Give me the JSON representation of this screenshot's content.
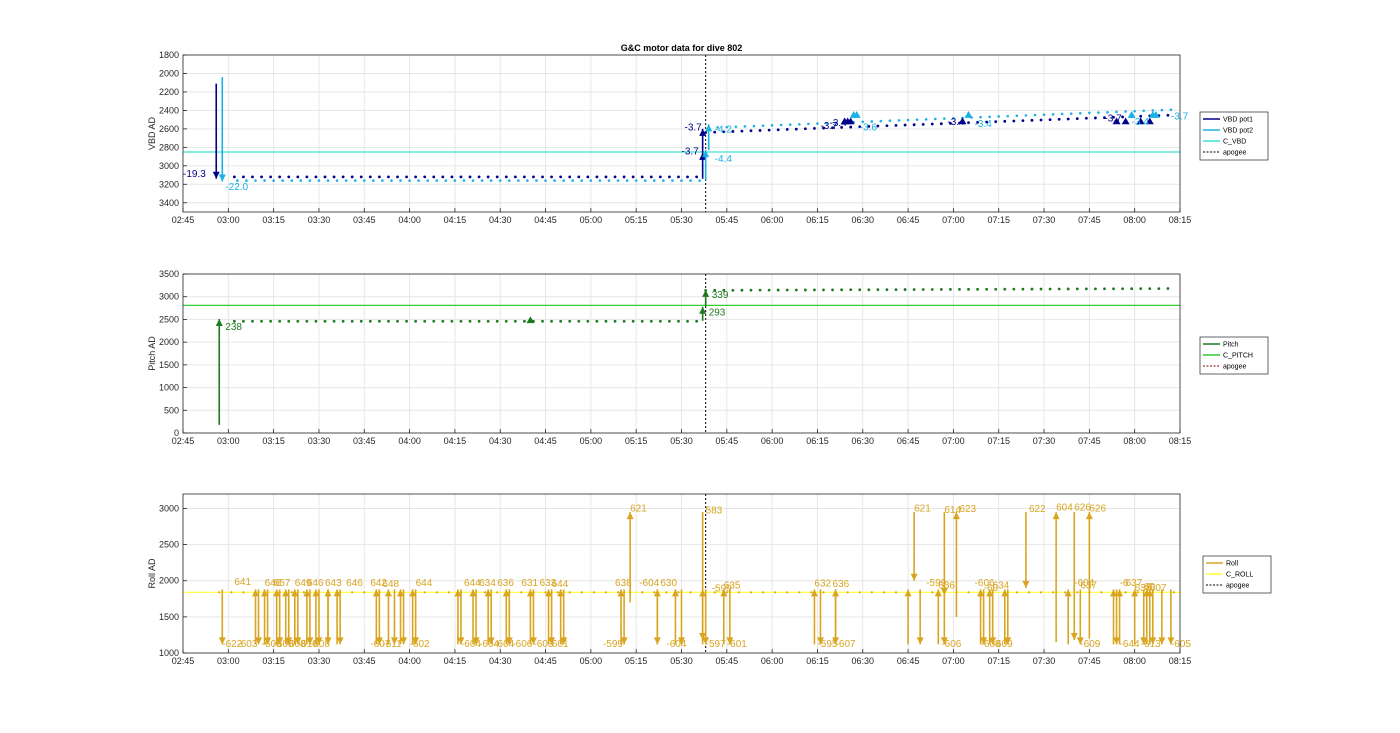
{
  "chart_data": [
    {
      "type": "line",
      "title": "G&C motor data for dive 802",
      "xlabel": "",
      "ylabel": "VBD AD",
      "ylim": [
        3500,
        1800
      ],
      "y_reversed": true,
      "yticks": [
        "1800",
        "2000",
        "2200",
        "2400",
        "2600",
        "2800",
        "3000",
        "3200",
        "3400"
      ],
      "xticks": [
        "02:45",
        "03:00",
        "03:15",
        "03:30",
        "03:45",
        "04:00",
        "04:15",
        "04:30",
        "04:45",
        "05:00",
        "05:15",
        "05:30",
        "05:45",
        "06:00",
        "06:15",
        "06:30",
        "06:45",
        "07:00",
        "07:15",
        "07:30",
        "07:45",
        "08:00",
        "08:15"
      ],
      "grid": true,
      "legend": "right",
      "legend_entries": [
        "VBD pot1",
        "VBD pot2",
        "C_VBD",
        "apogee"
      ],
      "colors": {
        "pot1": "#00008b",
        "pot2": "#1ab2e6",
        "cvbd": "#40e0d0",
        "apogee": "#000000",
        "ann_pot1": "#00008b",
        "ann_pot2": "#1ab2e6"
      },
      "series": [
        {
          "name": "C_VBD",
          "type": "constant",
          "value": 2850
        },
        {
          "name": "apogee",
          "type": "vertical",
          "x": "05:38"
        }
      ],
      "segments_pot1": [
        {
          "x": "02:56",
          "y0": 2110,
          "y1": 3140
        },
        {
          "x": "05:37",
          "y0": 3140,
          "y1": 2860
        },
        {
          "x": "05:37",
          "y0": 2860,
          "y1": 2600
        }
      ],
      "segments_pot2": [
        {
          "x": "02:58",
          "y0": 2040,
          "y1": 3170
        },
        {
          "x": "05:38",
          "y0": 3150,
          "y1": 2830
        },
        {
          "x": "05:39",
          "y0": 2830,
          "y1": 2550
        }
      ],
      "markers_pot1": [
        "06:24",
        "06:25",
        "06:26",
        "07:03",
        "07:54",
        "07:57",
        "08:02",
        "08:05"
      ],
      "markers_pot2": [
        "06:27",
        "06:28",
        "07:05",
        "07:59",
        "08:06",
        "08:07"
      ],
      "annotations": [
        {
          "text": "-19.3",
          "x": "02:45",
          "y": 3120,
          "color": "pot1"
        },
        {
          "text": "-22.0",
          "x": "02:59",
          "y": 3260,
          "color": "pot2"
        },
        {
          "text": "-3.7",
          "x": "05:31",
          "y": 2620,
          "color": "pot1"
        },
        {
          "text": "-3.7",
          "x": "05:30",
          "y": 2880,
          "color": "pot1"
        },
        {
          "text": "-4.2",
          "x": "05:41",
          "y": 2640,
          "color": "pot2"
        },
        {
          "text": "-4.4",
          "x": "05:41",
          "y": 2960,
          "color": "pot2"
        },
        {
          "text": "-3.4",
          "x": "06:19",
          "y": 2570,
          "color": "pot1"
        },
        {
          "text": "-3.7",
          "x": "06:16",
          "y": 2600,
          "color": "pot1"
        },
        {
          "text": "-3.6",
          "x": "06:29",
          "y": 2620,
          "color": "pot2"
        },
        {
          "text": "-3.4",
          "x": "06:58",
          "y": 2560,
          "color": "pot1"
        },
        {
          "text": "-3.4",
          "x": "07:07",
          "y": 2580,
          "color": "pot2"
        },
        {
          "text": "-3.7",
          "x": "07:50",
          "y": 2520,
          "color": "pot1"
        },
        {
          "text": "-3.4",
          "x": "07:59",
          "y": 2560,
          "color": "pot2"
        },
        {
          "text": "-3.7",
          "x": "08:12",
          "y": 2500,
          "color": "pot2"
        }
      ]
    },
    {
      "type": "line",
      "title": "",
      "xlabel": "",
      "ylabel": "Pitch AD",
      "ylim": [
        0,
        3500
      ],
      "yticks": [
        "0",
        "500",
        "1000",
        "1500",
        "2000",
        "2500",
        "3000",
        "3500"
      ],
      "xticks": [
        "02:45",
        "03:00",
        "03:15",
        "03:30",
        "03:45",
        "04:00",
        "04:15",
        "04:30",
        "04:45",
        "05:00",
        "05:15",
        "05:30",
        "05:45",
        "06:00",
        "06:15",
        "06:30",
        "06:45",
        "07:00",
        "07:15",
        "07:30",
        "07:45",
        "08:00",
        "08:15"
      ],
      "grid": true,
      "legend": "right",
      "legend_entries": [
        "Pitch",
        "C_PITCH",
        "apogee"
      ],
      "colors": {
        "pitch": "#1e7a1e",
        "cpitch": "#33cc33",
        "apogee": "#800000"
      },
      "series": [
        {
          "name": "C_PITCH",
          "type": "constant",
          "value": 2810
        },
        {
          "name": "apogee",
          "type": "vertical",
          "x": "05:38"
        }
      ],
      "segments": [
        {
          "x": "02:57",
          "y0": 180,
          "y1": 2510
        },
        {
          "x": "05:37",
          "y0": 2470,
          "y1": 2780
        },
        {
          "x": "05:38",
          "y0": 2780,
          "y1": 3150
        }
      ],
      "markers": [
        "04:40"
      ],
      "annotations": [
        {
          "text": "238",
          "x": "02:59",
          "y": 2270
        },
        {
          "text": "339",
          "x": "05:40",
          "y": 2970
        },
        {
          "text": "293",
          "x": "05:39",
          "y": 2590
        }
      ]
    },
    {
      "type": "line",
      "title": "",
      "xlabel": "",
      "ylabel": "Roll AD",
      "ylim": [
        1000,
        3200
      ],
      "yticks": [
        "1000",
        "1500",
        "2000",
        "2500",
        "3000"
      ],
      "xticks": [
        "02:45",
        "03:00",
        "03:15",
        "03:30",
        "03:45",
        "04:00",
        "04:15",
        "04:30",
        "04:45",
        "05:00",
        "05:15",
        "05:30",
        "05:45",
        "06:00",
        "06:15",
        "06:30",
        "06:45",
        "07:00",
        "07:15",
        "07:30",
        "07:45",
        "08:00",
        "08:15"
      ],
      "grid": true,
      "legend": "right",
      "legend_entries": [
        "Roll",
        "C_ROLL",
        "apogee"
      ],
      "colors": {
        "roll": "#d9a520",
        "croll": "#ffff33",
        "apogee": "#000000"
      },
      "series": [
        {
          "name": "C_ROLL",
          "type": "constant",
          "value": 1840
        },
        {
          "name": "apogee",
          "type": "vertical",
          "x": "05:38"
        }
      ],
      "arrows_down": [
        "02:58",
        "03:10",
        "03:13",
        "03:17",
        "03:20",
        "03:23",
        "03:27",
        "03:30",
        "03:33",
        "03:37",
        "03:50",
        "03:55",
        "03:58",
        "04:02",
        "04:17",
        "04:22",
        "04:27",
        "04:33",
        "04:41",
        "04:47",
        "04:51",
        "05:11",
        "05:22",
        "05:30",
        "05:38",
        "05:46",
        "06:16",
        "06:21",
        "06:49",
        "06:57",
        "07:10",
        "07:13",
        "07:18",
        "07:42",
        "07:54",
        "08:03",
        "08:06",
        "08:09",
        "08:12"
      ],
      "arrows_up": [
        "03:09",
        "03:12",
        "03:16",
        "03:19",
        "03:22",
        "03:26",
        "03:29",
        "03:33",
        "03:36",
        "03:49",
        "03:53",
        "03:57",
        "04:01",
        "04:16",
        "04:21",
        "04:26",
        "04:32",
        "04:40",
        "04:46",
        "04:50",
        "05:10",
        "05:22",
        "05:28",
        "05:37",
        "05:44",
        "06:14",
        "06:21",
        "06:45",
        "06:55",
        "07:09",
        "07:12",
        "07:17",
        "07:38",
        "07:53",
        "07:55",
        "08:00",
        "08:04",
        "08:05"
      ],
      "annotations": [
        {
          "text": "-622",
          "x": "02:58",
          "y": 1080
        },
        {
          "text": "-603",
          "x": "03:03",
          "y": 1080
        },
        {
          "text": "-608",
          "x": "03:11",
          "y": 1080
        },
        {
          "text": "-608",
          "x": "03:15",
          "y": 1080
        },
        {
          "text": "-608",
          "x": "03:19",
          "y": 1080
        },
        {
          "text": "-610",
          "x": "03:23",
          "y": 1080
        },
        {
          "text": "-608",
          "x": "03:27",
          "y": 1080
        },
        {
          "text": "-607",
          "x": "03:47",
          "y": 1080
        },
        {
          "text": "-611",
          "x": "03:51",
          "y": 1080
        },
        {
          "text": "-602",
          "x": "04:00",
          "y": 1080
        },
        {
          "text": "-604",
          "x": "04:17",
          "y": 1080
        },
        {
          "text": "-604",
          "x": "04:23",
          "y": 1080
        },
        {
          "text": "-604",
          "x": "04:28",
          "y": 1080
        },
        {
          "text": "-606",
          "x": "04:34",
          "y": 1080
        },
        {
          "text": "-603",
          "x": "04:41",
          "y": 1080
        },
        {
          "text": "-601",
          "x": "04:46",
          "y": 1080
        },
        {
          "text": "-599",
          "x": "05:04",
          "y": 1080
        },
        {
          "text": "-604",
          "x": "05:25",
          "y": 1080
        },
        {
          "text": "-597",
          "x": "05:38",
          "y": 1080
        },
        {
          "text": "-601",
          "x": "05:45",
          "y": 1080
        },
        {
          "text": "-595",
          "x": "06:15",
          "y": 1080
        },
        {
          "text": "-607",
          "x": "06:21",
          "y": 1080
        },
        {
          "text": "-606",
          "x": "06:56",
          "y": 1080
        },
        {
          "text": "-608",
          "x": "07:09",
          "y": 1080
        },
        {
          "text": "-609",
          "x": "07:13",
          "y": 1080
        },
        {
          "text": "-609",
          "x": "07:42",
          "y": 1080
        },
        {
          "text": "-644",
          "x": "07:55",
          "y": 1080
        },
        {
          "text": "-613",
          "x": "08:02",
          "y": 1080
        },
        {
          "text": "-605",
          "x": "08:12",
          "y": 1080
        },
        {
          "text": "641",
          "x": "03:02",
          "y": 1940
        },
        {
          "text": "646",
          "x": "03:12",
          "y": 1930
        },
        {
          "text": "657",
          "x": "03:15",
          "y": 1930
        },
        {
          "text": "649",
          "x": "03:22",
          "y": 1930
        },
        {
          "text": "646",
          "x": "03:26",
          "y": 1930
        },
        {
          "text": "643",
          "x": "03:32",
          "y": 1930
        },
        {
          "text": "646",
          "x": "03:39",
          "y": 1930
        },
        {
          "text": "642",
          "x": "03:47",
          "y": 1930
        },
        {
          "text": "648",
          "x": "03:51",
          "y": 1910
        },
        {
          "text": "644",
          "x": "04:02",
          "y": 1930
        },
        {
          "text": "644",
          "x": "04:18",
          "y": 1930
        },
        {
          "text": "634",
          "x": "04:23",
          "y": 1930
        },
        {
          "text": "636",
          "x": "04:29",
          "y": 1930
        },
        {
          "text": "631",
          "x": "04:37",
          "y": 1930
        },
        {
          "text": "633",
          "x": "04:43",
          "y": 1930
        },
        {
          "text": "644",
          "x": "04:47",
          "y": 1910
        },
        {
          "text": "638",
          "x": "05:08",
          "y": 1930
        },
        {
          "text": "-604",
          "x": "05:16",
          "y": 1930
        },
        {
          "text": "630",
          "x": "05:23",
          "y": 1930
        },
        {
          "text": "-599",
          "x": "05:40",
          "y": 1850
        },
        {
          "text": "635",
          "x": "05:44",
          "y": 1890
        },
        {
          "text": "632",
          "x": "06:14",
          "y": 1920
        },
        {
          "text": "636",
          "x": "06:20",
          "y": 1910
        },
        {
          "text": "-599",
          "x": "06:51",
          "y": 1930
        },
        {
          "text": "636",
          "x": "06:55",
          "y": 1890
        },
        {
          "text": "-606",
          "x": "07:07",
          "y": 1930
        },
        {
          "text": "-60",
          "x": "07:10",
          "y": 1860
        },
        {
          "text": "634",
          "x": "07:13",
          "y": 1890
        },
        {
          "text": "-604",
          "x": "07:40",
          "y": 1930
        },
        {
          "text": "637",
          "x": "07:42",
          "y": 1890
        },
        {
          "text": "-6",
          "x": "07:55",
          "y": 1930
        },
        {
          "text": "637",
          "x": "07:57",
          "y": 1930
        },
        {
          "text": "-60",
          "x": "08:02",
          "y": 1870
        },
        {
          "text": "638",
          "x": "08:00",
          "y": 1860
        },
        {
          "text": "6",
          "x": "08:04",
          "y": 1870
        },
        {
          "text": "607",
          "x": "08:05",
          "y": 1860
        },
        {
          "text": "621",
          "x": "05:13",
          "y": 2960
        },
        {
          "text": "583",
          "x": "05:38",
          "y": 2930
        },
        {
          "text": "621",
          "x": "06:47",
          "y": 2960
        },
        {
          "text": "614",
          "x": "06:57",
          "y": 2940
        },
        {
          "text": "623",
          "x": "07:02",
          "y": 2950
        },
        {
          "text": "622",
          "x": "07:25",
          "y": 2950
        },
        {
          "text": "604",
          "x": "07:34",
          "y": 2970
        },
        {
          "text": "626",
          "x": "07:40",
          "y": 2970
        },
        {
          "text": "626",
          "x": "07:45",
          "y": 2960
        }
      ]
    }
  ]
}
